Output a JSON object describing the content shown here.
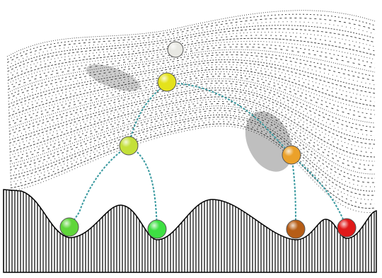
{
  "balls": [
    {
      "color": "#e9e9e4"
    },
    {
      "color": "#e4e21c"
    },
    {
      "color": "#c4e03a"
    },
    {
      "color": "#eba12a"
    },
    {
      "color": "#5fd63a"
    },
    {
      "color": "#3ee043"
    },
    {
      "color": "#b65d16"
    },
    {
      "color": "#e01a1a"
    }
  ]
}
